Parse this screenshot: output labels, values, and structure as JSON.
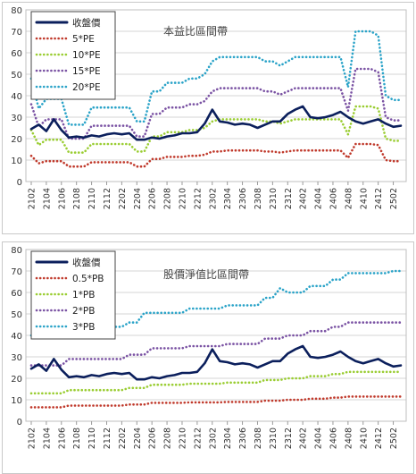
{
  "chart_data": [
    {
      "type": "line",
      "title": "本益比區間帶",
      "xlabel": "",
      "ylabel": "",
      "ylim": [
        0,
        80
      ],
      "yticks": [
        0,
        10,
        20,
        30,
        40,
        50,
        60,
        70,
        80
      ],
      "grid": true,
      "legend_position": "top-left",
      "categories": [
        "2102",
        "2103",
        "2104",
        "2105",
        "2106",
        "2107",
        "2108",
        "2109",
        "2110",
        "2111",
        "2112",
        "2201",
        "2202",
        "2203",
        "2204",
        "2205",
        "2206",
        "2207",
        "2208",
        "2209",
        "2210",
        "2211",
        "2212",
        "2301",
        "2302",
        "2303",
        "2304",
        "2305",
        "2306",
        "2307",
        "2308",
        "2309",
        "2310",
        "2311",
        "2312",
        "2401",
        "2402",
        "2403",
        "2404",
        "2405",
        "2406",
        "2407",
        "2408",
        "2409",
        "2410",
        "2411",
        "2412",
        "2501",
        "2502",
        "2503"
      ],
      "xtick_labels": [
        "2102",
        "2104",
        "2106",
        "2108",
        "2110",
        "2112",
        "2202",
        "2204",
        "2206",
        "2208",
        "2210",
        "2212",
        "2302",
        "2304",
        "2306",
        "2308",
        "2310",
        "2312",
        "2402",
        "2404",
        "2406",
        "2408",
        "2410",
        "2412",
        "2502"
      ],
      "series": [
        {
          "name": "收盤價",
          "color": "#0b1f5c",
          "style": "solid",
          "values": [
            24.5,
            26.5,
            23.5,
            29,
            24,
            20.5,
            21,
            20.5,
            21.5,
            21,
            22,
            22.5,
            22,
            22.5,
            19.5,
            19.5,
            20.5,
            20,
            21,
            21.5,
            22.5,
            22.5,
            23,
            27,
            33.5,
            28,
            27.5,
            26.5,
            27,
            26.5,
            25,
            26.5,
            28,
            28,
            31.5,
            33.5,
            35,
            30,
            29.5,
            30,
            31,
            32.5,
            30,
            28,
            27,
            28,
            29,
            27,
            25.5,
            26
          ]
        },
        {
          "name": "5*PE",
          "color": "#c0392b",
          "style": "dotted",
          "values": [
            12,
            8.5,
            9.5,
            9.5,
            9.5,
            7,
            7,
            7,
            9,
            9,
            9,
            9,
            9,
            9,
            7,
            7,
            10.5,
            10.5,
            11.5,
            11.5,
            11.5,
            12,
            12,
            12.5,
            14,
            14,
            14.5,
            14.5,
            14.5,
            14.5,
            14.5,
            14,
            14,
            13.5,
            14,
            14.5,
            14.5,
            14.5,
            14.5,
            14.5,
            14.5,
            14.5,
            11,
            17.5,
            17.5,
            17.5,
            17,
            10,
            9.5,
            9.5
          ]
        },
        {
          "name": "10*PE",
          "color": "#9acd32",
          "style": "dotted",
          "values": [
            24,
            17,
            19.5,
            19.5,
            19.5,
            13.5,
            13.5,
            13.5,
            17.5,
            17.5,
            17.5,
            17.5,
            17.5,
            17.5,
            14,
            14,
            21,
            21,
            23,
            23,
            23,
            24,
            24,
            25,
            28,
            29,
            29,
            29,
            29,
            29,
            29,
            28,
            28,
            27,
            28,
            29,
            29,
            29,
            29,
            29,
            29,
            29,
            22,
            35,
            35,
            35,
            34,
            20,
            19,
            19
          ]
        },
        {
          "name": "15*PE",
          "color": "#7a52a3",
          "style": "dotted",
          "values": [
            36,
            25.5,
            29,
            29,
            29,
            20,
            20,
            20,
            26,
            26,
            26,
            26,
            26,
            26,
            21,
            21,
            31.5,
            31.5,
            34.5,
            34.5,
            34.5,
            36,
            36,
            37.5,
            42,
            43.5,
            43.5,
            43.5,
            43.5,
            43.5,
            43.5,
            42,
            42,
            40.5,
            42,
            43.5,
            43.5,
            43.5,
            43.5,
            43.5,
            43.5,
            43.5,
            33,
            52.5,
            52.5,
            52.5,
            51,
            30,
            28.5,
            28.5
          ]
        },
        {
          "name": "20*PE",
          "color": "#2aa3c8",
          "style": "dotted",
          "values": [
            48,
            34,
            38.5,
            38.5,
            38.5,
            26.5,
            26.5,
            26.5,
            34.5,
            34.5,
            34.5,
            34.5,
            34.5,
            34.5,
            28,
            28,
            42,
            42,
            46,
            46,
            46,
            48,
            48,
            50,
            56,
            58,
            58,
            58,
            58,
            58,
            58,
            56,
            56,
            54,
            56,
            58,
            58,
            58,
            58,
            58,
            58,
            58,
            44,
            70,
            70,
            70,
            68,
            40,
            38,
            38
          ]
        }
      ]
    },
    {
      "type": "line",
      "title": "股價淨值比區間帶",
      "xlabel": "",
      "ylabel": "",
      "ylim": [
        0,
        80
      ],
      "yticks": [
        0,
        10,
        20,
        30,
        40,
        50,
        60,
        70,
        80
      ],
      "grid": true,
      "legend_position": "top-left",
      "categories": [
        "2102",
        "2103",
        "2104",
        "2105",
        "2106",
        "2107",
        "2108",
        "2109",
        "2110",
        "2111",
        "2112",
        "2201",
        "2202",
        "2203",
        "2204",
        "2205",
        "2206",
        "2207",
        "2208",
        "2209",
        "2210",
        "2211",
        "2212",
        "2301",
        "2302",
        "2303",
        "2304",
        "2305",
        "2306",
        "2307",
        "2308",
        "2309",
        "2310",
        "2311",
        "2312",
        "2401",
        "2402",
        "2403",
        "2404",
        "2405",
        "2406",
        "2407",
        "2408",
        "2409",
        "2410",
        "2411",
        "2412",
        "2501",
        "2502",
        "2503"
      ],
      "xtick_labels": [
        "2102",
        "2104",
        "2106",
        "2108",
        "2110",
        "2112",
        "2202",
        "2204",
        "2206",
        "2208",
        "2210",
        "2212",
        "2302",
        "2304",
        "2306",
        "2308",
        "2310",
        "2312",
        "2402",
        "2404",
        "2406",
        "2408",
        "2410",
        "2412",
        "2502"
      ],
      "series": [
        {
          "name": "收盤價",
          "color": "#0b1f5c",
          "style": "solid",
          "values": [
            24.5,
            26.5,
            23.5,
            29,
            24,
            20.5,
            21,
            20.5,
            21.5,
            21,
            22,
            22.5,
            22,
            22.5,
            19.5,
            19.5,
            20.5,
            20,
            21,
            21.5,
            22.5,
            22.5,
            23,
            27,
            33.5,
            28,
            27.5,
            26.5,
            27,
            26.5,
            25,
            26.5,
            28,
            28,
            31.5,
            33.5,
            35,
            30,
            29.5,
            30,
            31,
            32.5,
            30,
            28,
            27,
            28,
            29,
            27,
            25.5,
            26
          ]
        },
        {
          "name": "0.5*PB",
          "color": "#c0392b",
          "style": "dotted",
          "values": [
            6.5,
            6.5,
            6.5,
            6.5,
            6.5,
            7.3,
            7.3,
            7.3,
            7.3,
            7.3,
            7.3,
            7.3,
            7.3,
            7.8,
            7.8,
            7.8,
            8.6,
            8.6,
            8.6,
            8.6,
            8.6,
            8.8,
            8.8,
            8.8,
            8.8,
            8.8,
            9,
            9,
            9,
            9,
            9,
            9.6,
            9.6,
            9.6,
            10,
            10,
            10,
            10.5,
            10.5,
            10.5,
            11,
            11,
            11.5,
            11.5,
            11.5,
            11.5,
            11.5,
            11.5,
            11.5,
            11.5
          ]
        },
        {
          "name": "1*PB",
          "color": "#9acd32",
          "style": "dotted",
          "values": [
            13,
            13,
            13,
            13,
            13,
            14.5,
            14.5,
            14.5,
            14.5,
            14.5,
            14.5,
            14.5,
            14.5,
            15.5,
            15.5,
            15.5,
            17,
            17,
            17,
            17,
            17,
            17.5,
            17.5,
            17.5,
            17.5,
            17.5,
            18,
            18,
            18,
            18,
            18,
            19.2,
            19.2,
            19.2,
            20,
            20,
            20,
            21,
            21,
            21,
            22,
            22,
            23,
            23,
            23,
            23,
            23,
            23,
            23,
            23
          ]
        },
        {
          "name": "2*PB",
          "color": "#7a52a3",
          "style": "dotted",
          "values": [
            26,
            26,
            26,
            26,
            26,
            29,
            29,
            29,
            29,
            29,
            29,
            29,
            29,
            31,
            31,
            31,
            34,
            34,
            34,
            34,
            34,
            35,
            35,
            35,
            35,
            35,
            36,
            36,
            36,
            36,
            36,
            38.5,
            38.5,
            38.5,
            40,
            40,
            40,
            42,
            42,
            42,
            44,
            44,
            46,
            46,
            46,
            46,
            46,
            46,
            46,
            46
          ]
        },
        {
          "name": "3*PB",
          "color": "#2aa3c8",
          "style": "dotted",
          "values": [
            40,
            40,
            39,
            39,
            41.5,
            43.5,
            43.5,
            43.5,
            43.5,
            43.5,
            43.5,
            44,
            44,
            46,
            46,
            50.5,
            50.5,
            50.5,
            50.5,
            50.5,
            50.5,
            52.5,
            52.5,
            52.5,
            52.5,
            52.5,
            54,
            54,
            54,
            54,
            54,
            57.5,
            57.5,
            62,
            60,
            60,
            60,
            63,
            63,
            63,
            66,
            66,
            69,
            69,
            69,
            69,
            69,
            69,
            70,
            70
          ]
        }
      ]
    }
  ]
}
